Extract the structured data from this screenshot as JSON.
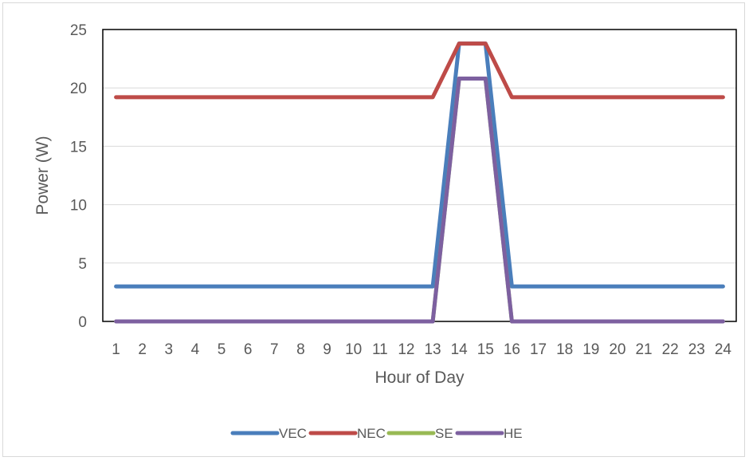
{
  "chart_data": {
    "type": "line",
    "title": "",
    "xlabel": "Hour of Day",
    "ylabel": "Power (W)",
    "x": [
      1,
      2,
      3,
      4,
      5,
      6,
      7,
      8,
      9,
      10,
      11,
      12,
      13,
      14,
      15,
      16,
      17,
      18,
      19,
      20,
      21,
      22,
      23,
      24
    ],
    "x_tick_labels": [
      "1",
      "2",
      "3",
      "4",
      "5",
      "6",
      "7",
      "8",
      "9",
      "10",
      "11",
      "12",
      "13",
      "14",
      "15",
      "16",
      "17",
      "18",
      "19",
      "20",
      "21",
      "22",
      "23",
      "24"
    ],
    "ylim": [
      0,
      25
    ],
    "y_ticks": [
      0,
      5,
      10,
      15,
      20,
      25
    ],
    "grid": "horizontal",
    "legend_position": "bottom",
    "series": [
      {
        "name": "VEC",
        "color": "#4a7ebb",
        "values": [
          3,
          3,
          3,
          3,
          3,
          3,
          3,
          3,
          3,
          3,
          3,
          3,
          3,
          23.8,
          23.8,
          3,
          3,
          3,
          3,
          3,
          3,
          3,
          3,
          3
        ]
      },
      {
        "name": "NEC",
        "color": "#be4b48",
        "values": [
          19.2,
          19.2,
          19.2,
          19.2,
          19.2,
          19.2,
          19.2,
          19.2,
          19.2,
          19.2,
          19.2,
          19.2,
          19.2,
          23.8,
          23.8,
          19.2,
          19.2,
          19.2,
          19.2,
          19.2,
          19.2,
          19.2,
          19.2,
          19.2
        ]
      },
      {
        "name": "SE",
        "color": "#98b954",
        "values": [
          0,
          0,
          0,
          0,
          0,
          0,
          0,
          0,
          0,
          0,
          0,
          0,
          0,
          20.8,
          20.8,
          0,
          0,
          0,
          0,
          0,
          0,
          0,
          0,
          0
        ]
      },
      {
        "name": "HE",
        "color": "#7d60a0",
        "values": [
          0,
          0,
          0,
          0,
          0,
          0,
          0,
          0,
          0,
          0,
          0,
          0,
          0,
          20.8,
          20.8,
          0,
          0,
          0,
          0,
          0,
          0,
          0,
          0,
          0
        ]
      }
    ]
  }
}
